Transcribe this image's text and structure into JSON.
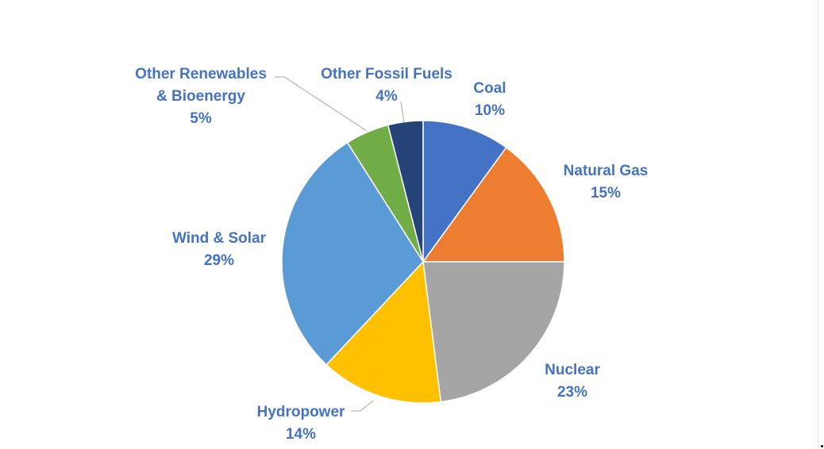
{
  "chart_data": {
    "type": "pie",
    "start_angle_deg": 0,
    "direction": "clockwise",
    "legend": "none",
    "label_color": "#4472C4",
    "slices": [
      {
        "label": "Coal",
        "value": 10,
        "percent_label": "10%",
        "color": "#4472C4"
      },
      {
        "label": "Natural Gas",
        "value": 15,
        "percent_label": "15%",
        "color": "#ED7D31"
      },
      {
        "label": "Nuclear",
        "value": 23,
        "percent_label": "23%",
        "color": "#A5A5A5"
      },
      {
        "label": "Hydropower",
        "value": 14,
        "percent_label": "14%",
        "color": "#FFC000"
      },
      {
        "label": "Wind & Solar",
        "value": 29,
        "percent_label": "29%",
        "color": "#5B9BD5"
      },
      {
        "label": "Other Renewables & Bioenergy",
        "label_lines": [
          "Other Renewables",
          "& Bioenergy"
        ],
        "value": 5,
        "percent_label": "5%",
        "color": "#70AD47"
      },
      {
        "label": "Other Fossil Fuels",
        "value": 4,
        "percent_label": "4%",
        "color": "#264478"
      }
    ]
  }
}
